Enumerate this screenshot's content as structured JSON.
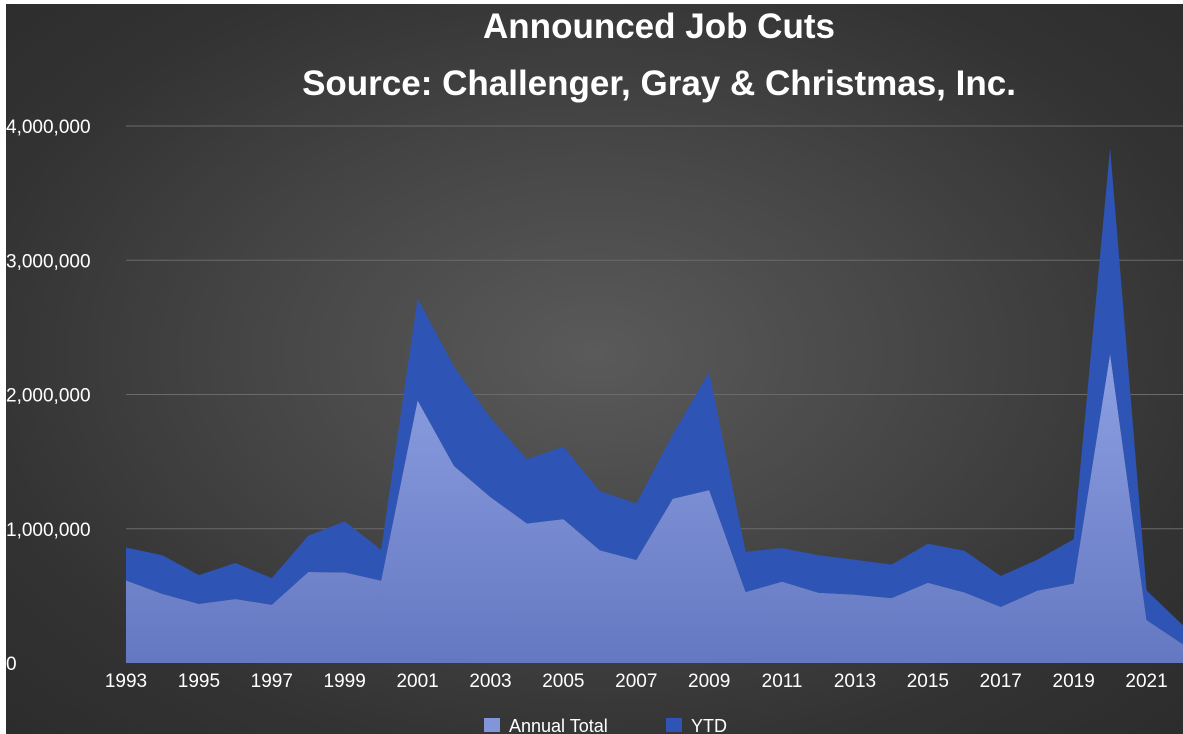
{
  "chart_data": {
    "type": "area",
    "stacked": true,
    "title": [
      "Announced Job Cuts",
      "Source: Challenger, Gray & Christmas, Inc."
    ],
    "xlabel": "",
    "ylabel": "",
    "x": [
      1993,
      1994,
      1995,
      1996,
      1997,
      1998,
      1999,
      2000,
      2001,
      2002,
      2003,
      2004,
      2005,
      2006,
      2007,
      2008,
      2009,
      2010,
      2011,
      2012,
      2013,
      2014,
      2015,
      2016,
      2017,
      2018,
      2019,
      2020,
      2021,
      2022
    ],
    "xticks": [
      "1993",
      "1995",
      "1997",
      "1999",
      "2001",
      "2003",
      "2005",
      "2007",
      "2009",
      "2011",
      "2013",
      "2015",
      "2017",
      "2019",
      "2021"
    ],
    "ylim": [
      0,
      4000000
    ],
    "yticks": [
      "0",
      "1,000,000",
      "2,000,000",
      "3,000,000",
      "4,000,000"
    ],
    "ytick_values": [
      0,
      1000000,
      2000000,
      3000000,
      4000000
    ],
    "grid": true,
    "legend_position": "bottom",
    "series": [
      {
        "name": "Annual Total",
        "color": "#7b8fd6",
        "values": [
          615000,
          515000,
          440000,
          477000,
          434000,
          678000,
          675000,
          614000,
          1956000,
          1467000,
          1236000,
          1039000,
          1072000,
          840000,
          768000,
          1223000,
          1288000,
          529000,
          606000,
          523000,
          509000,
          483000,
          598000,
          526000,
          418000,
          539000,
          592000,
          2305000,
          320000,
          140000
        ]
      },
      {
        "name": "YTD",
        "color": "#2e55b5",
        "values": [
          245000,
          288000,
          215000,
          268000,
          198000,
          270000,
          380000,
          230000,
          760000,
          740000,
          590000,
          480000,
          540000,
          440000,
          420000,
          480000,
          880000,
          300000,
          250000,
          280000,
          260000,
          250000,
          290000,
          310000,
          230000,
          230000,
          330000,
          1530000,
          220000,
          140000
        ]
      }
    ]
  }
}
